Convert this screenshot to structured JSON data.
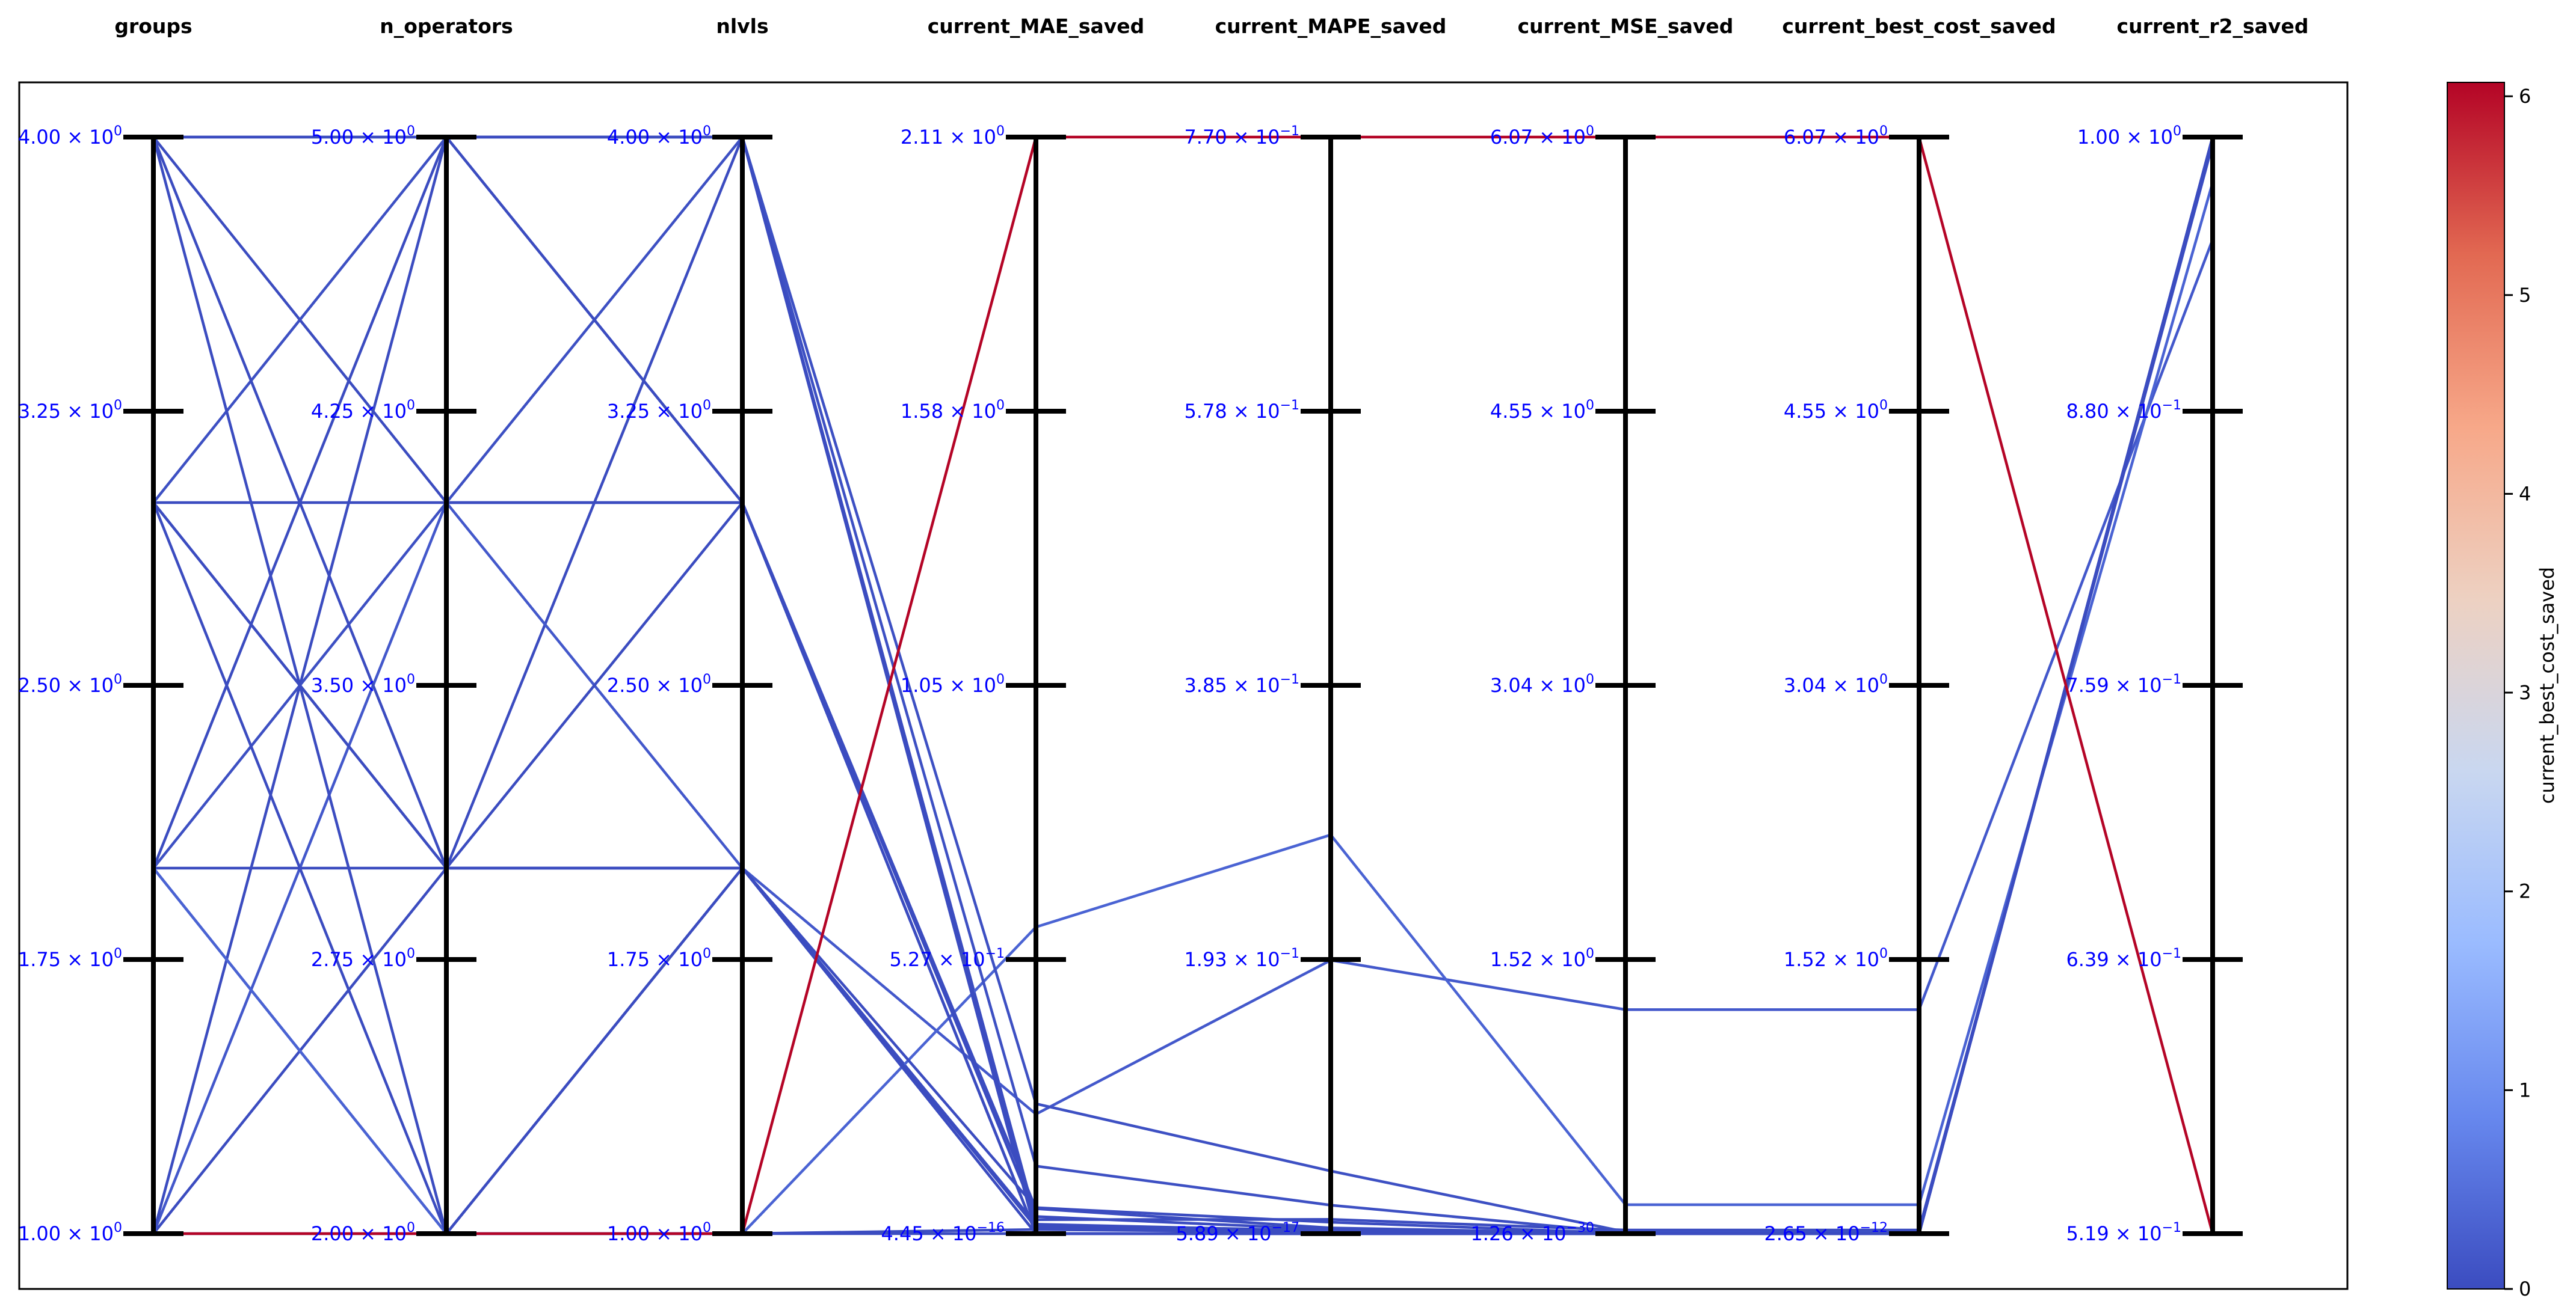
{
  "chart_data": {
    "type": "parallel_coordinates",
    "title": "",
    "axes": [
      {
        "name": "groups",
        "range": [
          1.0,
          4.0
        ],
        "ticks": [
          {
            "mantissa": "4.00",
            "exp": "0"
          },
          {
            "mantissa": "3.25",
            "exp": "0"
          },
          {
            "mantissa": "2.50",
            "exp": "0"
          },
          {
            "mantissa": "1.75",
            "exp": "0"
          },
          {
            "mantissa": "1.00",
            "exp": "0"
          }
        ]
      },
      {
        "name": "n_operators",
        "range": [
          2.0,
          5.0
        ],
        "ticks": [
          {
            "mantissa": "5.00",
            "exp": "0"
          },
          {
            "mantissa": "4.25",
            "exp": "0"
          },
          {
            "mantissa": "3.50",
            "exp": "0"
          },
          {
            "mantissa": "2.75",
            "exp": "0"
          },
          {
            "mantissa": "2.00",
            "exp": "0"
          }
        ]
      },
      {
        "name": "nlvls",
        "range": [
          1.0,
          4.0
        ],
        "ticks": [
          {
            "mantissa": "4.00",
            "exp": "0"
          },
          {
            "mantissa": "3.25",
            "exp": "0"
          },
          {
            "mantissa": "2.50",
            "exp": "0"
          },
          {
            "mantissa": "1.75",
            "exp": "0"
          },
          {
            "mantissa": "1.00",
            "exp": "0"
          }
        ]
      },
      {
        "name": "current_MAE_saved",
        "range": [
          4.45e-16,
          2.11
        ],
        "ticks": [
          {
            "mantissa": "2.11",
            "exp": "0"
          },
          {
            "mantissa": "1.58",
            "exp": "0"
          },
          {
            "mantissa": "1.05",
            "exp": "0"
          },
          {
            "mantissa": "5.27",
            "exp": "−1"
          },
          {
            "mantissa": "4.45",
            "exp": "−16"
          }
        ]
      },
      {
        "name": "current_MAPE_saved",
        "range": [
          5.89e-17,
          0.77
        ],
        "ticks": [
          {
            "mantissa": "7.70",
            "exp": "−1"
          },
          {
            "mantissa": "5.78",
            "exp": "−1"
          },
          {
            "mantissa": "3.85",
            "exp": "−1"
          },
          {
            "mantissa": "1.93",
            "exp": "−1"
          },
          {
            "mantissa": "5.89",
            "exp": "−17"
          }
        ]
      },
      {
        "name": "current_MSE_saved",
        "range": [
          1.26e-30,
          6.07
        ],
        "ticks": [
          {
            "mantissa": "6.07",
            "exp": "0"
          },
          {
            "mantissa": "4.55",
            "exp": "0"
          },
          {
            "mantissa": "3.04",
            "exp": "0"
          },
          {
            "mantissa": "1.52",
            "exp": "0"
          },
          {
            "mantissa": "1.26",
            "exp": "−30"
          }
        ]
      },
      {
        "name": "current_best_cost_saved",
        "range": [
          2.65e-12,
          6.07
        ],
        "ticks": [
          {
            "mantissa": "6.07",
            "exp": "0"
          },
          {
            "mantissa": "4.55",
            "exp": "0"
          },
          {
            "mantissa": "3.04",
            "exp": "0"
          },
          {
            "mantissa": "1.52",
            "exp": "0"
          },
          {
            "mantissa": "2.65",
            "exp": "−12"
          }
        ]
      },
      {
        "name": "current_r2_saved",
        "range": [
          0.519,
          1.0
        ],
        "ticks": [
          {
            "mantissa": "1.00",
            "exp": "0"
          },
          {
            "mantissa": "8.80",
            "exp": "−1"
          },
          {
            "mantissa": "7.59",
            "exp": "−1"
          },
          {
            "mantissa": "6.39",
            "exp": "−1"
          },
          {
            "mantissa": "5.19",
            "exp": "−1"
          }
        ]
      }
    ],
    "series": [
      {
        "values": [
          1,
          2,
          1,
          2.11,
          0.77,
          6.07,
          6.07,
          0.519
        ],
        "color": "#b40426"
      },
      {
        "values": [
          4,
          5,
          4,
          0,
          0,
          0,
          0,
          1.0
        ],
        "color": "#3b4cc0"
      },
      {
        "values": [
          4,
          5,
          4,
          0.016,
          0.002,
          0,
          0,
          0.999
        ],
        "color": "#3b4cc0"
      },
      {
        "values": [
          4,
          4,
          3,
          0.048,
          0.004,
          0.001,
          0.001,
          0.998
        ],
        "color": "#3b4cc0"
      },
      {
        "values": [
          4,
          3,
          2,
          0.0,
          0.0,
          0,
          0,
          1.0
        ],
        "color": "#3b4cc0"
      },
      {
        "values": [
          4,
          2,
          1,
          0.008,
          0.001,
          0,
          0,
          0.999
        ],
        "color": "#3b4cc0"
      },
      {
        "values": [
          3,
          5,
          4,
          0.13,
          0.02,
          0.005,
          0.005,
          0.998
        ],
        "color": "#3d50c3"
      },
      {
        "values": [
          3,
          4,
          3,
          0.033,
          0.003,
          0.001,
          0.001,
          0.999
        ],
        "color": "#3b4cc0"
      },
      {
        "values": [
          3,
          3,
          3,
          0.0,
          0.0,
          0,
          0,
          1.0
        ],
        "color": "#3b4cc0"
      },
      {
        "values": [
          3,
          3,
          2,
          0.012,
          0.001,
          0,
          0,
          0.999
        ],
        "color": "#3b4cc0"
      },
      {
        "values": [
          3,
          2,
          2,
          0.05,
          0.008,
          0.002,
          0.002,
          0.998
        ],
        "color": "#3b4cc0"
      },
      {
        "values": [
          2,
          5,
          3,
          0.0,
          0.0,
          0,
          0,
          1.0
        ],
        "color": "#3b4cc0"
      },
      {
        "values": [
          2,
          4,
          4,
          0.25,
          0.044,
          0.01,
          0.01,
          0.997
        ],
        "color": "#3d50c3"
      },
      {
        "values": [
          2,
          3,
          2,
          0.0,
          0.0,
          0,
          0,
          1.0
        ],
        "color": "#3b4cc0"
      },
      {
        "values": [
          2,
          2,
          1,
          0.59,
          0.28,
          0.16,
          0.16,
          0.98
        ],
        "color": "#4a63d3"
      },
      {
        "values": [
          2,
          2,
          2,
          0.018,
          0.002,
          0,
          0,
          0.999
        ],
        "color": "#3b4cc0"
      },
      {
        "values": [
          1,
          5,
          3,
          0.0,
          0.0,
          0,
          0,
          1.0
        ],
        "color": "#3b4cc0"
      },
      {
        "values": [
          1,
          4,
          2,
          0.23,
          0.192,
          1.24,
          1.24,
          0.955
        ],
        "color": "#4358cb"
      },
      {
        "values": [
          1,
          3,
          4,
          0.027,
          0.01,
          0.02,
          0.02,
          0.998
        ],
        "color": "#3b4cc0"
      },
      {
        "values": [
          1,
          2,
          1,
          0.0,
          0.0,
          0,
          0,
          1.0
        ],
        "color": "#3b4cc0"
      }
    ],
    "colorbar": {
      "label": "current_best_cost_saved",
      "range": [
        0,
        6.07
      ],
      "ticks": [
        "0",
        "1",
        "2",
        "3",
        "4",
        "5",
        "6"
      ],
      "colormap": "coolwarm",
      "colors": [
        "#3b4cc0",
        "#6788ee",
        "#9abbff",
        "#c9d7f0",
        "#edd1c2",
        "#f7a889",
        "#e26952",
        "#b40426"
      ]
    },
    "grid": false,
    "legend": "none"
  }
}
